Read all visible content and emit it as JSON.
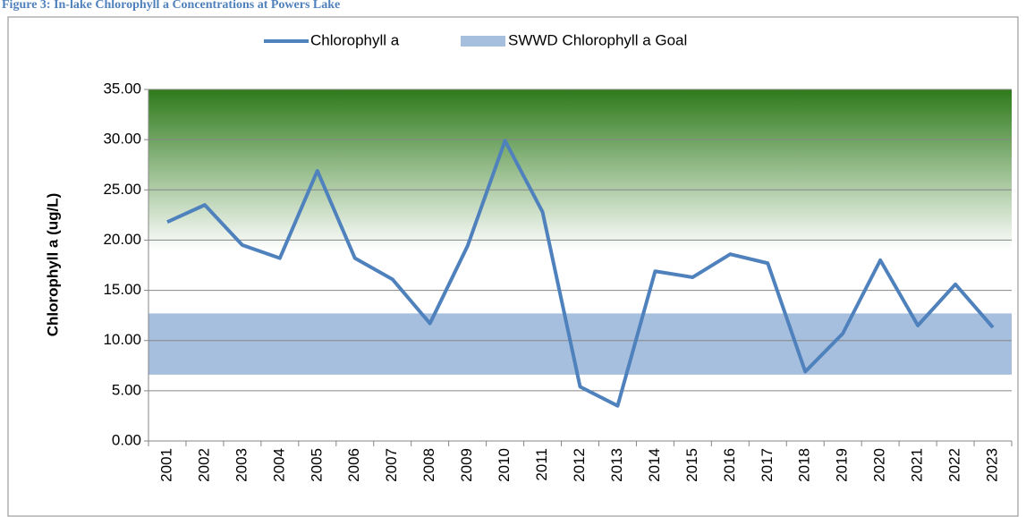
{
  "chart_data": {
    "type": "line",
    "title": "Figure 3: In-lake Chlorophyll a Concentrations at Powers Lake",
    "y_label": "Chlorophyll a (ug/L)",
    "categories": [
      "2001",
      "2002",
      "2003",
      "2004",
      "2005",
      "2006",
      "2007",
      "2008",
      "2009",
      "2010",
      "2011",
      "2012",
      "2013",
      "2014",
      "2015",
      "2016",
      "2017",
      "2018",
      "2019",
      "2020",
      "2021",
      "2022",
      "2023"
    ],
    "series": [
      {
        "name": "Chlorophyll a",
        "color": "#4f81bd",
        "values": [
          21.8,
          23.5,
          19.5,
          18.2,
          26.9,
          18.2,
          16.1,
          11.7,
          19.4,
          29.9,
          22.8,
          5.4,
          3.5,
          16.9,
          16.3,
          18.6,
          17.7,
          6.9,
          10.7,
          18.0,
          11.5,
          15.6,
          11.3
        ]
      }
    ],
    "bands": [
      {
        "name": "SWWD Chlorophyll a Goal",
        "color": "#a7bfde",
        "range": [
          6.6,
          12.7
        ]
      }
    ],
    "shading": {
      "color": "#2e7a1a",
      "range": [
        19,
        35
      ]
    },
    "ylim": [
      0,
      35
    ],
    "yticks": [
      {
        "value": 0,
        "label": "0.00"
      },
      {
        "value": 5,
        "label": "5.00"
      },
      {
        "value": 10,
        "label": "10.00"
      },
      {
        "value": 15,
        "label": "15.00"
      },
      {
        "value": 20,
        "label": "20.00"
      },
      {
        "value": 25,
        "label": "25.00"
      },
      {
        "value": 30,
        "label": "30.00"
      },
      {
        "value": 35,
        "label": "35.00"
      }
    ],
    "grid": true
  }
}
